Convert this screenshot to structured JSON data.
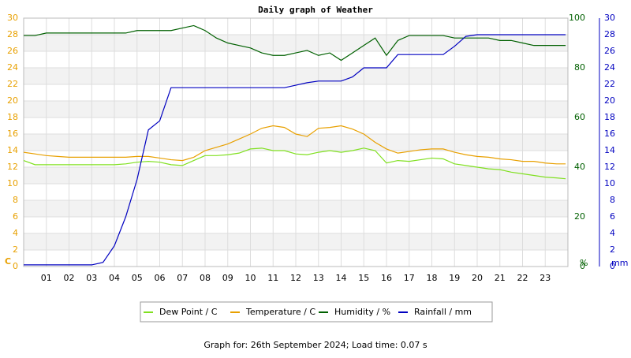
{
  "chart_data": {
    "type": "line",
    "title": "Daily graph of Weather",
    "xlim": [
      0,
      24
    ],
    "xticks": [
      {
        "value": 1,
        "label": "01"
      },
      {
        "value": 2,
        "label": "02"
      },
      {
        "value": 3,
        "label": "03"
      },
      {
        "value": 4,
        "label": "04"
      },
      {
        "value": 5,
        "label": "05"
      },
      {
        "value": 6,
        "label": "06"
      },
      {
        "value": 7,
        "label": "07"
      },
      {
        "value": 8,
        "label": "08"
      },
      {
        "value": 9,
        "label": "09"
      },
      {
        "value": 10,
        "label": "10"
      },
      {
        "value": 11,
        "label": "11"
      },
      {
        "value": 12,
        "label": "12"
      },
      {
        "value": 13,
        "label": "13"
      },
      {
        "value": 14,
        "label": "14"
      },
      {
        "value": 15,
        "label": "15"
      },
      {
        "value": 16,
        "label": "16"
      },
      {
        "value": 17,
        "label": "17"
      },
      {
        "value": 18,
        "label": "18"
      },
      {
        "value": 19,
        "label": "19"
      },
      {
        "value": 20,
        "label": "20"
      },
      {
        "value": 21,
        "label": "21"
      },
      {
        "value": 22,
        "label": "22"
      },
      {
        "value": 23,
        "label": "23"
      }
    ],
    "ylim": [
      0,
      30
    ],
    "yticks": [
      0,
      2,
      4,
      6,
      8,
      10,
      12,
      14,
      16,
      18,
      20,
      22,
      24,
      26,
      28,
      30
    ],
    "ylabel": "C",
    "ycolor": "#e8a000",
    "y2lim": [
      0,
      100
    ],
    "y2ticks": [
      0,
      20,
      40,
      60,
      80,
      100
    ],
    "y2label": "%",
    "y2color": "#006000",
    "y3lim": [
      0,
      30
    ],
    "y3ticks": [
      0,
      2,
      4,
      6,
      8,
      10,
      12,
      14,
      16,
      18,
      20,
      22,
      24,
      26,
      28,
      30
    ],
    "y3label": "mm",
    "y3color": "#0000c0",
    "grid": true,
    "x": [
      0,
      0.5,
      1,
      1.5,
      2,
      2.5,
      3,
      3.5,
      4,
      4.5,
      5,
      5.5,
      6,
      6.5,
      7,
      7.5,
      8,
      8.5,
      9,
      9.5,
      10,
      10.5,
      11,
      11.5,
      12,
      12.5,
      13,
      13.5,
      14,
      14.5,
      15,
      15.5,
      16,
      16.5,
      17,
      17.5,
      18,
      18.5,
      19,
      19.5,
      20,
      20.5,
      21,
      21.5,
      22,
      22.5,
      23,
      23.5,
      23.9
    ],
    "series": [
      {
        "name": "Dew Point / C",
        "color": "#80e020",
        "axis": "y",
        "values": [
          12.8,
          12.3,
          12.3,
          12.3,
          12.3,
          12.3,
          12.3,
          12.3,
          12.3,
          12.4,
          12.6,
          12.7,
          12.6,
          12.3,
          12.2,
          12.8,
          13.4,
          13.4,
          13.5,
          13.7,
          14.2,
          14.3,
          14.0,
          14.0,
          13.6,
          13.5,
          13.8,
          14.0,
          13.8,
          14.0,
          14.3,
          14.0,
          12.5,
          12.8,
          12.7,
          12.9,
          13.1,
          13.0,
          12.4,
          12.2,
          12.0,
          11.8,
          11.7,
          11.4,
          11.2,
          11.0,
          10.8,
          10.7,
          10.6
        ]
      },
      {
        "name": "Temperature / C",
        "color": "#e8a000",
        "axis": "y",
        "values": [
          13.8,
          13.6,
          13.4,
          13.3,
          13.2,
          13.2,
          13.2,
          13.2,
          13.2,
          13.2,
          13.3,
          13.3,
          13.1,
          12.9,
          12.8,
          13.2,
          14.0,
          14.4,
          14.8,
          15.4,
          16.0,
          16.7,
          17.0,
          16.8,
          16.0,
          15.7,
          16.7,
          16.8,
          17.0,
          16.6,
          16.0,
          15.0,
          14.2,
          13.7,
          13.9,
          14.1,
          14.2,
          14.2,
          13.8,
          13.5,
          13.3,
          13.2,
          13.0,
          12.9,
          12.7,
          12.7,
          12.5,
          12.4,
          12.4
        ]
      },
      {
        "name": "Humidity / %",
        "color": "#006000",
        "axis": "y2",
        "values": [
          93,
          93,
          94,
          94,
          94,
          94,
          94,
          94,
          94,
          94,
          95,
          95,
          95,
          95,
          96,
          97,
          95,
          92,
          90,
          89,
          88,
          86,
          85,
          85,
          86,
          87,
          85,
          86,
          83,
          86,
          89,
          92,
          85,
          91,
          93,
          93,
          93,
          93,
          92,
          92,
          92,
          92,
          91,
          91,
          90,
          89,
          89,
          89,
          89
        ]
      },
      {
        "name": "Rainfall / mm",
        "color": "#0000c0",
        "axis": "y3",
        "values": [
          0.2,
          0.2,
          0.2,
          0.2,
          0.2,
          0.2,
          0.2,
          0.5,
          2.5,
          6,
          10.5,
          16.5,
          17.6,
          21.6,
          21.6,
          21.6,
          21.6,
          21.6,
          21.6,
          21.6,
          21.6,
          21.6,
          21.6,
          21.6,
          21.9,
          22.2,
          22.4,
          22.4,
          22.4,
          22.9,
          24.0,
          24.0,
          24.0,
          25.6,
          25.6,
          25.6,
          25.6,
          25.6,
          26.6,
          27.8,
          28.0,
          28.0,
          28.0,
          28.0,
          28.0,
          28.0,
          28.0,
          28.0,
          28.0
        ]
      }
    ],
    "footer": "Graph for: 26th September 2024; Load time: 0.07 s"
  }
}
